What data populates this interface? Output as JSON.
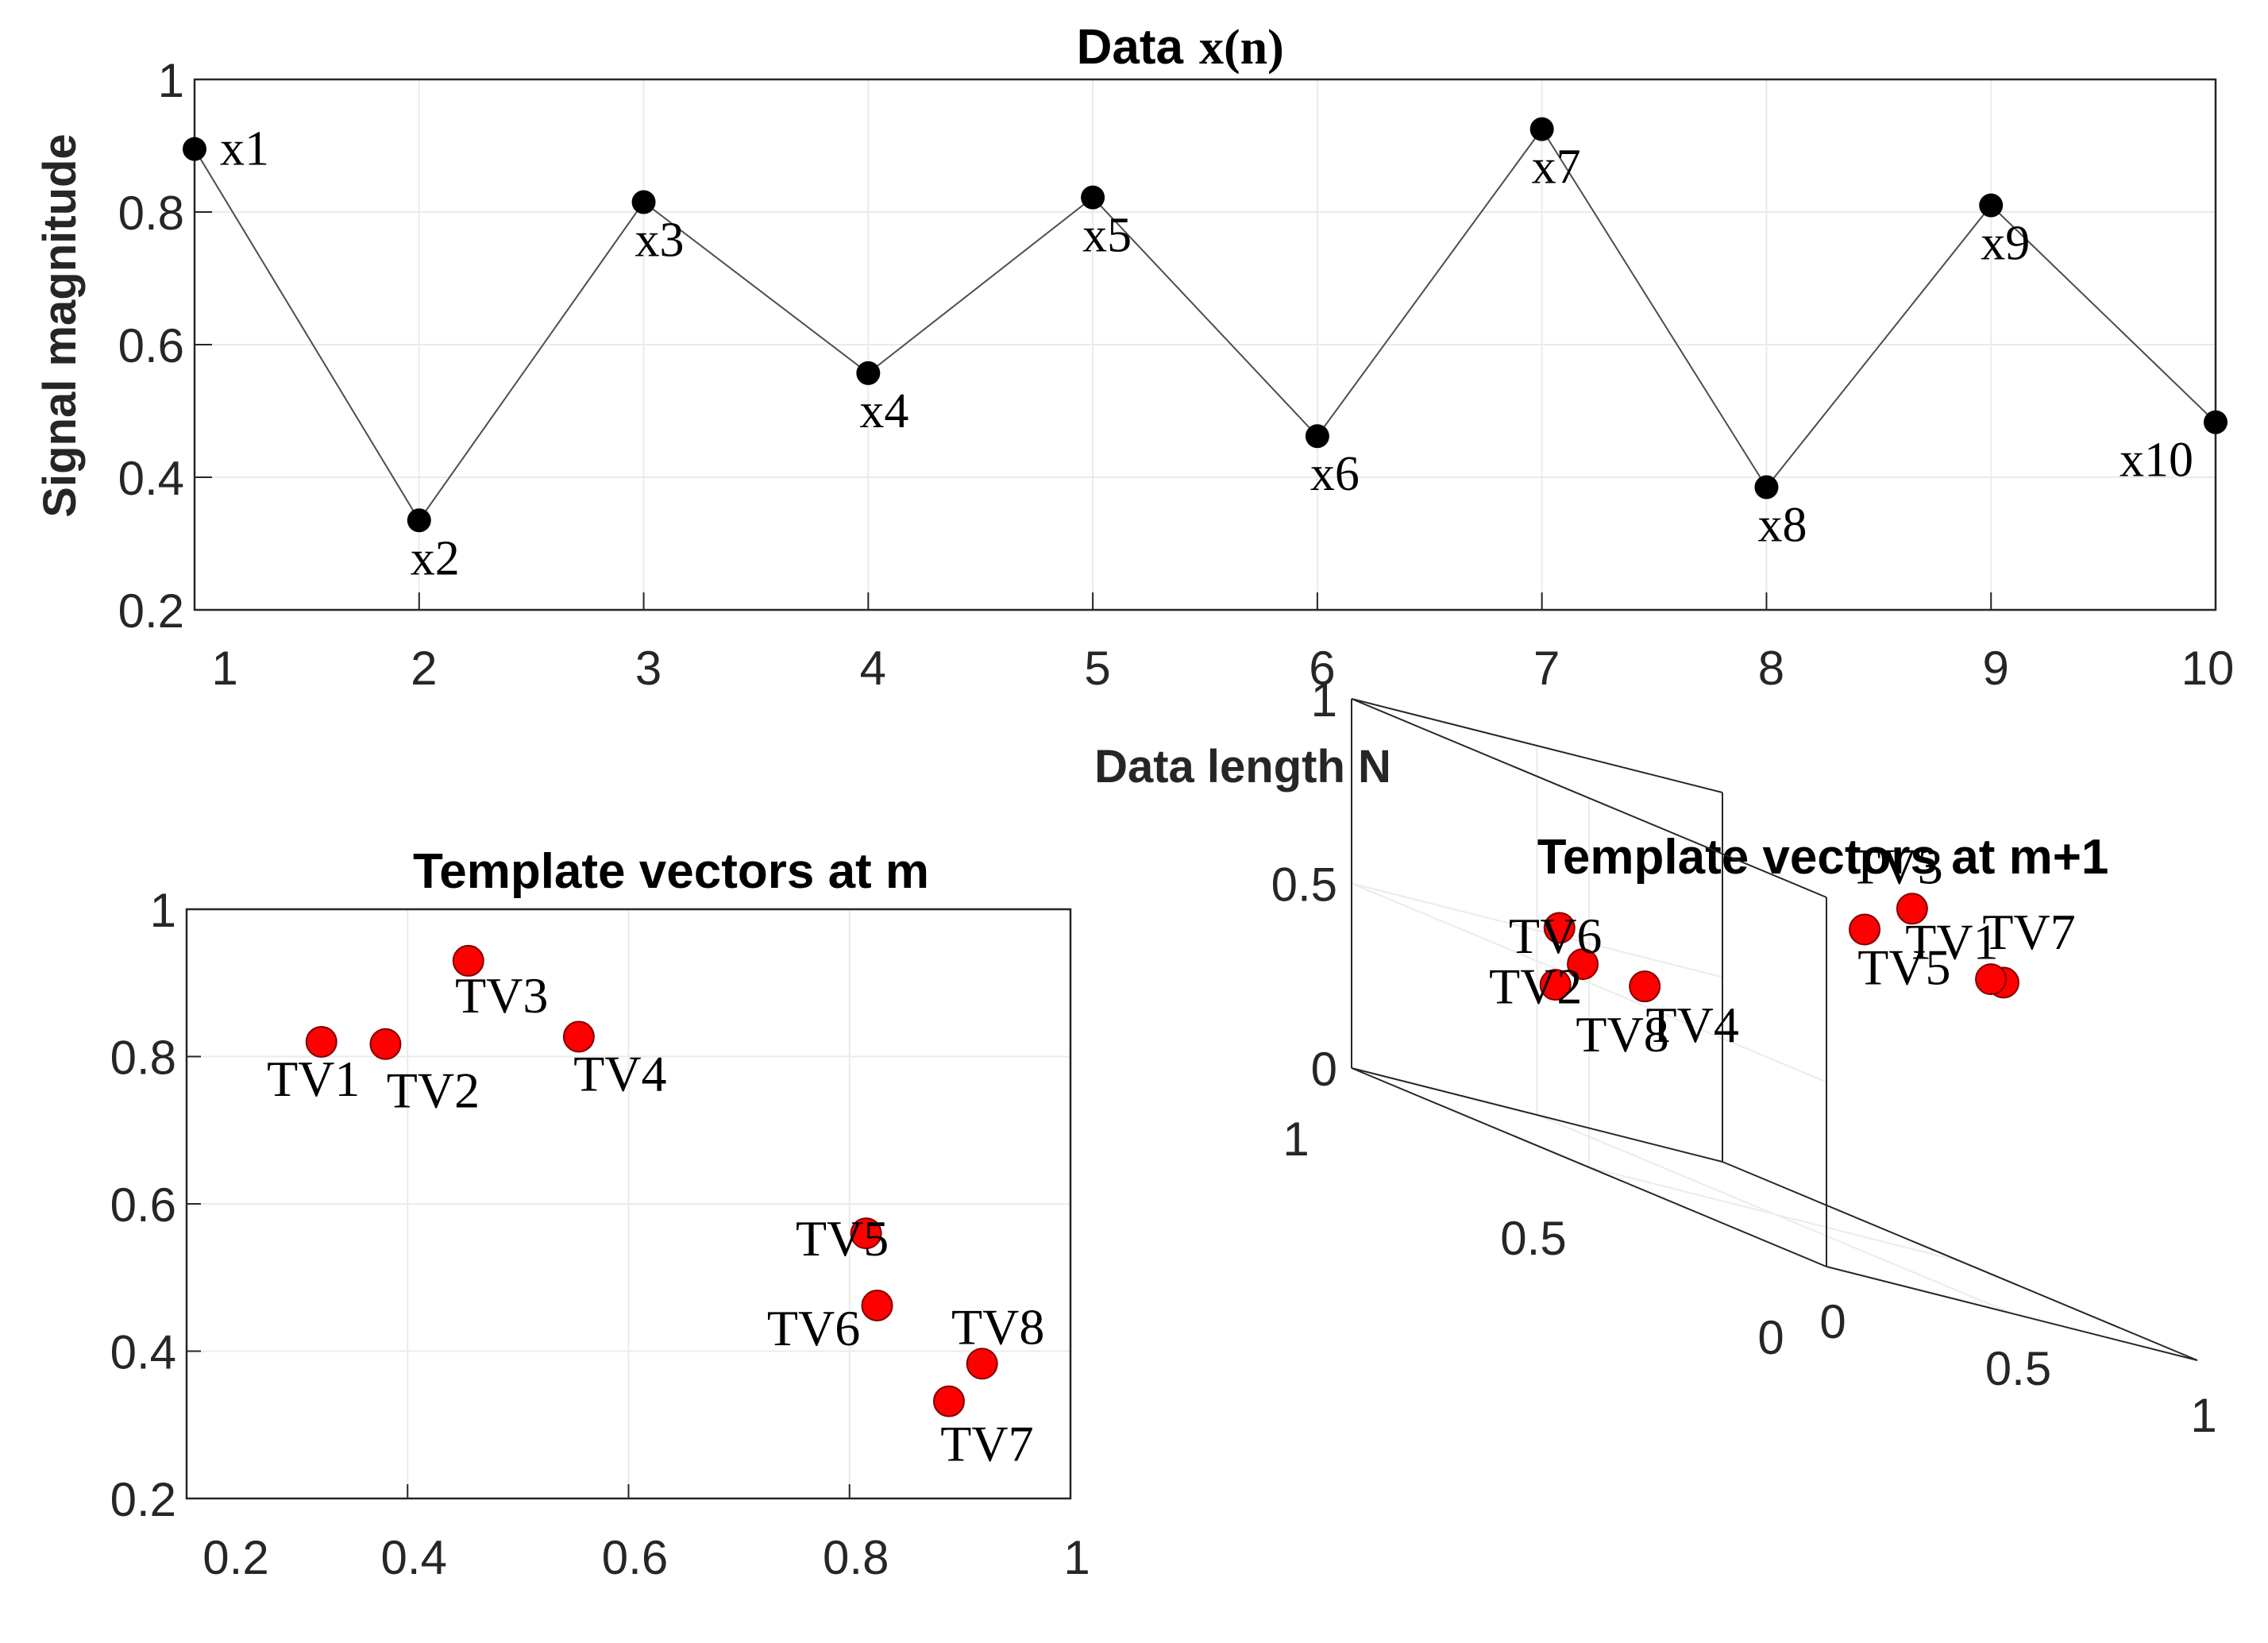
{
  "figure_bg": "#ffffff",
  "colors": {
    "axis": "#262626",
    "grid": "#ebebeb",
    "line": "#4d4d4d",
    "marker_black": "#000000",
    "marker_red": "#ff0000",
    "marker_red_edge": "#800000"
  },
  "chart_data": [
    {
      "id": "top",
      "type": "line",
      "title": "Data",
      "title_math": "x(n)",
      "xlabel": "Data length N",
      "ylabel": "Signal magnitude",
      "xlim": [
        1,
        10
      ],
      "ylim": [
        0.2,
        1
      ],
      "xticks": [
        1,
        2,
        3,
        4,
        5,
        6,
        7,
        8,
        9,
        10
      ],
      "xtick_labels": [
        "1",
        "2",
        "3",
        "4",
        "5",
        "6",
        "7",
        "8",
        "9",
        "10"
      ],
      "yticks": [
        0.2,
        0.4,
        0.6,
        0.8,
        1
      ],
      "ytick_labels": [
        "0.2",
        "0.4",
        "0.6",
        "0.8",
        "1"
      ],
      "grid": true,
      "x": [
        1,
        2,
        3,
        4,
        5,
        6,
        7,
        8,
        9,
        10
      ],
      "y": [
        0.895,
        0.335,
        0.815,
        0.557,
        0.822,
        0.462,
        0.925,
        0.385,
        0.81,
        0.483
      ],
      "point_labels": [
        "x1",
        "x2",
        "x3",
        "x4",
        "x5",
        "x6",
        "x7",
        "x8",
        "x9",
        "x10"
      ]
    },
    {
      "id": "bottom-left",
      "type": "scatter",
      "title": "Template vectors at m",
      "xlim": [
        0.2,
        1
      ],
      "ylim": [
        0.2,
        1
      ],
      "xticks": [
        0.2,
        0.4,
        0.6,
        0.8,
        1
      ],
      "xtick_labels": [
        "0.2",
        "0.4",
        "0.6",
        "0.8",
        "1"
      ],
      "yticks": [
        0.2,
        0.4,
        0.6,
        0.8,
        1
      ],
      "ytick_labels": [
        "0.2",
        "0.4",
        "0.6",
        "0.8",
        "1"
      ],
      "grid": true,
      "x": [
        0.322,
        0.38,
        0.455,
        0.555,
        0.815,
        0.825,
        0.89,
        0.92
      ],
      "y": [
        0.82,
        0.817,
        0.93,
        0.827,
        0.56,
        0.462,
        0.332,
        0.383
      ],
      "point_labels": [
        "TV1",
        "TV2",
        "TV3",
        "TV4",
        "TV5",
        "TV6",
        "TV7",
        "TV8"
      ]
    },
    {
      "id": "bottom-right",
      "type": "scatter3d",
      "title": "Template vectors at m+1",
      "xlim": [
        0,
        1
      ],
      "ylim": [
        0,
        1
      ],
      "zlim": [
        0,
        1
      ],
      "xticks": [
        0,
        0.5,
        1
      ],
      "xtick_labels": [
        "0",
        "0.5",
        "1"
      ],
      "yticks": [
        0,
        0.5,
        1
      ],
      "ytick_labels": [
        "0",
        "0.5",
        "1"
      ],
      "zticks": [
        0,
        0.5,
        1
      ],
      "ztick_labels": [
        "0",
        "0.5",
        "1"
      ],
      "grid": true,
      "x": [
        0.9,
        0.33,
        0.82,
        0.56,
        0.82,
        0.46,
        0.93,
        0.38
      ],
      "y": [
        0.33,
        0.82,
        0.56,
        0.82,
        0.46,
        0.93,
        0.38,
        0.81
      ],
      "z": [
        0.82,
        0.56,
        0.82,
        0.46,
        0.93,
        0.38,
        0.81,
        0.48
      ],
      "point_labels": [
        "TV1",
        "TV2",
        "TV3",
        "TV4",
        "TV5",
        "TV6",
        "TV7",
        "TV8"
      ]
    }
  ]
}
